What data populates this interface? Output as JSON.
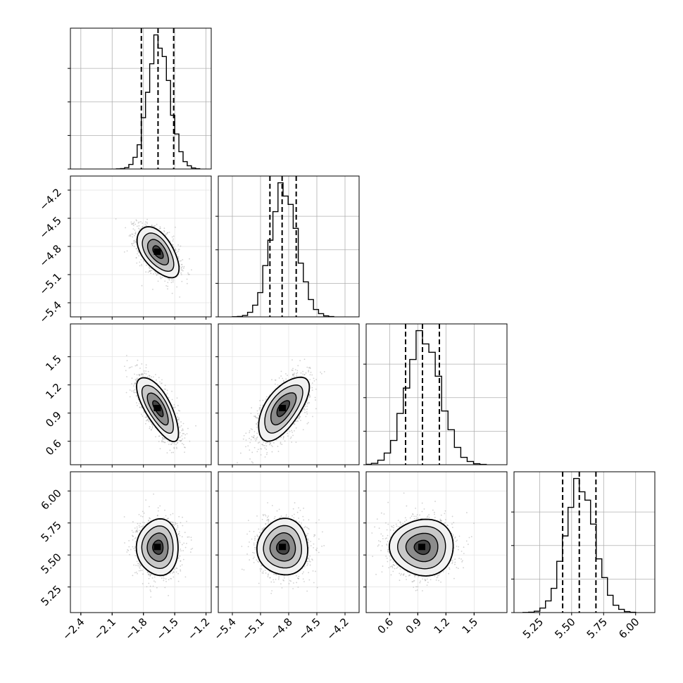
{
  "chart_data": {
    "type": "corner",
    "parameters": 4,
    "axis_ranges": [
      [
        -2.5,
        -1.15
      ],
      [
        -5.55,
        -4.05
      ],
      [
        0.35,
        1.85
      ],
      [
        5.05,
        6.15
      ]
    ],
    "ticks": [
      [
        -2.4,
        -2.1,
        -1.8,
        -1.5,
        -1.2
      ],
      [
        -5.4,
        -5.1,
        -4.8,
        -4.5,
        -4.2
      ],
      [
        0.6,
        0.9,
        1.2,
        1.5
      ],
      [
        5.25,
        5.5,
        5.75,
        6.0
      ]
    ],
    "tick_labels": [
      [
        "−2.4",
        "−2.1",
        "−1.8",
        "−1.5",
        "−1.2"
      ],
      [
        "−5.4",
        "−5.1",
        "−4.8",
        "−4.5",
        "−4.2"
      ],
      [
        "0.6",
        "0.9",
        "1.2",
        "1.5"
      ],
      [
        "5.25",
        "5.50",
        "5.75",
        "6.00"
      ]
    ],
    "quantiles": [
      [
        -1.82,
        -1.66,
        -1.51
      ],
      [
        -5.0,
        -4.87,
        -4.72
      ],
      [
        0.77,
        0.95,
        1.13
      ],
      [
        5.43,
        5.56,
        5.69
      ]
    ],
    "means": [
      -1.66,
      -4.86,
      0.95,
      5.56
    ],
    "stds": [
      0.1,
      0.135,
      0.17,
      0.11
    ],
    "correlations": [
      [
        1,
        -0.55,
        -0.72,
        0.0
      ],
      [
        -0.55,
        1,
        0.62,
        0.0
      ],
      [
        -0.72,
        0.62,
        1,
        0.0
      ],
      [
        0.0,
        0.0,
        0.0,
        1
      ]
    ],
    "histogram_bins": 20,
    "grid": true,
    "colors": {
      "marks": "#000000",
      "grid": "#b0b0b0",
      "scatter": "#9a9a9a"
    }
  }
}
